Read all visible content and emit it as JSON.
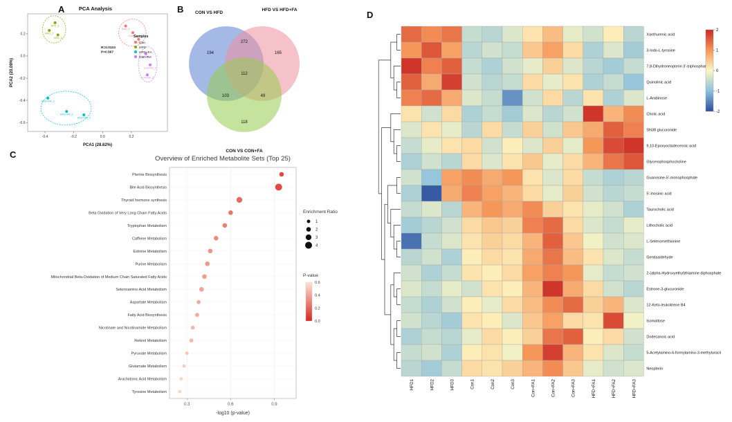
{
  "figure": {
    "panel_labels": {
      "a": "A",
      "b": "B",
      "c": "C",
      "d": "D"
    }
  },
  "chart_data": [
    {
      "id": "pca",
      "type": "scatter",
      "title": "PCA Analysis",
      "xlabel": "PCA1 (28.62%)",
      "ylabel": "PCA2 (20.09%)",
      "xlim": [
        -0.52,
        0.45
      ],
      "ylim": [
        -0.68,
        0.38
      ],
      "xticks": [
        -0.4,
        -0.2,
        0.0,
        0.2
      ],
      "yticks": [
        -0.6,
        -0.4,
        -0.2,
        0.0,
        0.2
      ],
      "annotation": [
        "R=0.0123",
        "P=0.567"
      ],
      "legend_title": "Samples",
      "grid": false,
      "legend_position": "inside-right",
      "groups": [
        {
          "name": "Con",
          "color": "#F8766D",
          "points": [
            {
              "label": "Con_1",
              "x": 0.16,
              "y": 0.27
            },
            {
              "label": "Con_2",
              "x": 0.21,
              "y": 0.21
            },
            {
              "label": "Con_3",
              "x": 0.25,
              "y": 0.15
            }
          ]
        },
        {
          "name": "HFD",
          "color": "#7CAE00",
          "points": [
            {
              "label": "HFD_1",
              "x": -0.33,
              "y": 0.3
            },
            {
              "label": "HFD_2",
              "x": -0.37,
              "y": 0.23
            },
            {
              "label": "HFD_3",
              "x": -0.31,
              "y": 0.19
            }
          ]
        },
        {
          "name": "HFD+FA",
          "color": "#00BFC4",
          "points": [
            {
              "label": "HFD+FA_1",
              "x": -0.38,
              "y": -0.38
            },
            {
              "label": "HFD+FA_2",
              "x": -0.25,
              "y": -0.5
            },
            {
              "label": "HFD+FA_3",
              "x": -0.13,
              "y": -0.53
            }
          ]
        },
        {
          "name": "Con+FA",
          "color": "#C77CFF",
          "points": [
            {
              "label": "Con+FA_1",
              "x": 0.3,
              "y": 0.02
            },
            {
              "label": "Con+FA_2",
              "x": 0.33,
              "y": -0.08
            },
            {
              "label": "Con+FA_3",
              "x": 0.31,
              "y": -0.17
            }
          ]
        }
      ]
    },
    {
      "id": "venn",
      "type": "venn",
      "sets": [
        {
          "name": "CON VS HFD",
          "color": "#5b7fd4"
        },
        {
          "name": "HFD VS HFD+FA",
          "color": "#ef8f9e"
        },
        {
          "name": "CON VS CON+FA",
          "color": "#97cc4f"
        }
      ],
      "counts": {
        "A": "194",
        "AB": "272",
        "B": "165",
        "ABC": "112",
        "AC": "103",
        "BC": "49",
        "C": "118"
      }
    },
    {
      "id": "dotplot",
      "type": "scatter",
      "title": "Overview of Enriched Metabolite Sets (Top 25)",
      "xlabel": "-log10 (p-value)",
      "xlim": [
        0.18,
        1.05
      ],
      "xticks": [
        0.3,
        0.6,
        0.9
      ],
      "grid": true,
      "categories": [
        "Pterine Biosynthesis",
        "Bile Acid Biosynthesis",
        "Thyroid hormone synthesis",
        "Beta Oxidation of Very Long Chain Fatty Acids",
        "Tryptophan Metabolism",
        "Caffeine Metabolism",
        "Estrone Metabolism",
        "Purine Metabolism",
        "Mitochondrial Beta-Oxidation of Medium Chain Saturated Fatty Acids",
        "Selenoamino Acid Metabolism",
        "Aspartate Metabolism",
        "Fatty Acid Biosynthesis",
        "Nicotinate and Nicotinamide Metabolism",
        "Retinol Metabolism",
        "Pyruvate Metabolism",
        "Glutamate Metabolism",
        "Arachidonic Acid Metabolism",
        "Tyrosine Metabolism"
      ],
      "x": [
        0.95,
        0.93,
        0.66,
        0.6,
        0.56,
        0.5,
        0.46,
        0.44,
        0.42,
        0.4,
        0.38,
        0.37,
        0.34,
        0.33,
        0.3,
        0.28,
        0.26,
        0.25
      ],
      "ratio": [
        2,
        4,
        3,
        2,
        2,
        2,
        2,
        2,
        2,
        2,
        1.5,
        1.5,
        1.5,
        1.5,
        1,
        1,
        1,
        1
      ],
      "pvalue": [
        0.11,
        0.12,
        0.22,
        0.25,
        0.28,
        0.32,
        0.35,
        0.36,
        0.38,
        0.4,
        0.42,
        0.43,
        0.46,
        0.47,
        0.5,
        0.52,
        0.55,
        0.56
      ],
      "size_legend": {
        "title": "Enrichment Ratio",
        "values": [
          1,
          2,
          3,
          4
        ]
      },
      "color_legend": {
        "title": "P-value",
        "ticks": [
          0.6,
          0.4,
          0.2,
          0.0
        ],
        "min_color": "#d7261f",
        "max_color": "#fde3d3"
      }
    },
    {
      "id": "heatmap",
      "type": "heatmap",
      "columns": [
        "HFD1",
        "HFD2",
        "HFD3",
        "Con1",
        "Con2",
        "Con3",
        "Con+FA1",
        "Con+FA2",
        "Con+FA3",
        "HFD+FA1",
        "HFD+FA2",
        "HFD+FA3"
      ],
      "rows": [
        "Xanthurenic acid",
        "3-Iodo-L-tyrosine",
        "7,8-Dihydroneopterin 3'-triphosphate",
        "Quinolinic acid",
        "L-Arabinose",
        "Cholic acid",
        "SN38 glucuronide",
        "9,10-Epoxyoctadecenoic acid",
        "Glycerophosphocholine",
        "Guanosine-5'-monophosphate",
        "5'-Inosinic acid",
        "Taurocholic acid",
        "Lithocholic acid",
        "L-Selenomethionine",
        "Gentisaldehyde",
        "2-(alpha-Hydroxyethyl)thiamine diphosphate",
        "Estrone-3-glucuronide",
        "12-Keto-leukotriene B4",
        "Isomaltose",
        "Dodecanoic acid",
        "5-Acetylamino-6-formylamino-3-methyluracil",
        "Neopterin"
      ],
      "values": [
        [
          1.4,
          1.1,
          1.3,
          -0.5,
          -0.6,
          -0.3,
          0.2,
          0.6,
          -0.2,
          -0.4,
          0.1,
          -0.6
        ],
        [
          1.0,
          1.6,
          0.9,
          -0.6,
          -0.4,
          -0.5,
          0.5,
          0.9,
          0.3,
          -0.7,
          -0.3,
          -0.8
        ],
        [
          1.9,
          1.2,
          1.5,
          -0.5,
          -0.7,
          -0.4,
          -0.2,
          0.4,
          -0.3,
          -0.6,
          -0.8,
          -0.5
        ],
        [
          1.5,
          0.8,
          1.8,
          -0.4,
          -0.6,
          -0.5,
          0.3,
          -0.2,
          0.2,
          -0.7,
          -0.5,
          -0.9
        ],
        [
          1.2,
          1.4,
          0.8,
          -0.3,
          -0.5,
          -1.4,
          -0.4,
          0.3,
          -0.6,
          0.2,
          -0.7,
          -0.3
        ],
        [
          0.2,
          -0.4,
          0.3,
          -0.7,
          -0.5,
          -0.8,
          -0.3,
          -0.6,
          -0.4,
          1.9,
          0.7,
          1.1
        ],
        [
          -0.3,
          0.2,
          -0.2,
          -0.6,
          0.3,
          -0.5,
          0.4,
          -0.4,
          0.5,
          0.8,
          1.5,
          1.2
        ],
        [
          -0.5,
          -0.2,
          0.2,
          0.3,
          -0.4,
          0.1,
          -0.3,
          0.4,
          -0.2,
          1.0,
          1.7,
          1.9
        ],
        [
          -0.7,
          -0.4,
          -0.6,
          0.3,
          -0.3,
          0.2,
          0.5,
          -0.2,
          0.3,
          0.7,
          1.3,
          1.6
        ],
        [
          -0.4,
          -0.9,
          0.9,
          1.1,
          0.8,
          1.0,
          0.2,
          -0.3,
          0.3,
          -0.5,
          -0.7,
          -0.6
        ],
        [
          -0.7,
          -1.9,
          0.8,
          1.2,
          0.9,
          0.7,
          0.3,
          -0.2,
          0.4,
          -0.4,
          -0.6,
          -0.5
        ],
        [
          -0.5,
          -0.3,
          -0.6,
          0.7,
          1.0,
          0.8,
          1.1,
          0.4,
          0.2,
          -0.2,
          -0.4,
          -0.7
        ],
        [
          -0.8,
          -0.6,
          -0.4,
          0.3,
          0.5,
          0.4,
          1.2,
          1.4,
          0.3,
          -0.3,
          -0.5,
          -0.2
        ],
        [
          -1.7,
          -0.5,
          -0.3,
          0.2,
          0.4,
          0.3,
          0.7,
          1.5,
          0.5,
          -0.1,
          -0.4,
          -0.3
        ],
        [
          -0.6,
          -0.4,
          -0.7,
          0.1,
          0.3,
          0.2,
          0.8,
          1.3,
          0.6,
          0.2,
          -0.3,
          -0.5
        ],
        [
          -0.4,
          -0.7,
          -0.5,
          0.2,
          0.1,
          0.3,
          0.9,
          1.2,
          1.0,
          -0.2,
          -0.5,
          -0.4
        ],
        [
          -0.3,
          -0.5,
          -0.2,
          -0.4,
          0.2,
          0.1,
          0.7,
          1.9,
          0.8,
          0.3,
          -0.4,
          -0.6
        ],
        [
          -0.5,
          -0.7,
          -0.4,
          0.1,
          -0.2,
          0.3,
          0.6,
          1.1,
          1.4,
          0.4,
          0.7,
          -0.3
        ],
        [
          -0.4,
          -0.6,
          -0.8,
          0.2,
          0.1,
          -0.3,
          0.5,
          0.9,
          0.3,
          0.2,
          1.7,
          -0.1
        ],
        [
          -0.7,
          -0.5,
          -0.6,
          -0.2,
          0.3,
          0.1,
          0.4,
          1.3,
          1.5,
          0.1,
          0.3,
          -0.4
        ],
        [
          -0.5,
          -0.4,
          -0.7,
          0.1,
          0.2,
          -0.1,
          1.0,
          1.8,
          0.7,
          0.2,
          -0.3,
          -0.5
        ],
        [
          -0.6,
          -0.8,
          -0.5,
          0.3,
          0.2,
          0.4,
          0.7,
          1.1,
          0.5,
          -0.2,
          -0.4,
          -0.3
        ]
      ],
      "colorbar_ticks": [
        2,
        1,
        0,
        -1,
        -2
      ],
      "colormap": {
        "stops": [
          -2,
          -1,
          0,
          1,
          2
        ],
        "colors": [
          "#2d4f9e",
          "#8cc1dc",
          "#fdf6c3",
          "#f6975a",
          "#cc2a24"
        ]
      },
      "dendrogram": [
        [
          [
            0,
            1
          ],
          [
            2,
            [
              3,
              4
            ]
          ]
        ],
        [
          [
            5,
            [
              6,
              [
                7,
                8
              ]
            ]
          ],
          [
            [
              [
                9,
                10
              ],
              [
                11,
                [
                  12,
                  [
                    13,
                    14
                  ]
                ]
              ]
            ],
            [
              [
                15,
                [
                  16,
                  17
                ]
              ],
              [
                [
                  18,
                  19
                ],
                [
                  20,
                  21
                ]
              ]
            ]
          ]
        ]
      ]
    }
  ]
}
